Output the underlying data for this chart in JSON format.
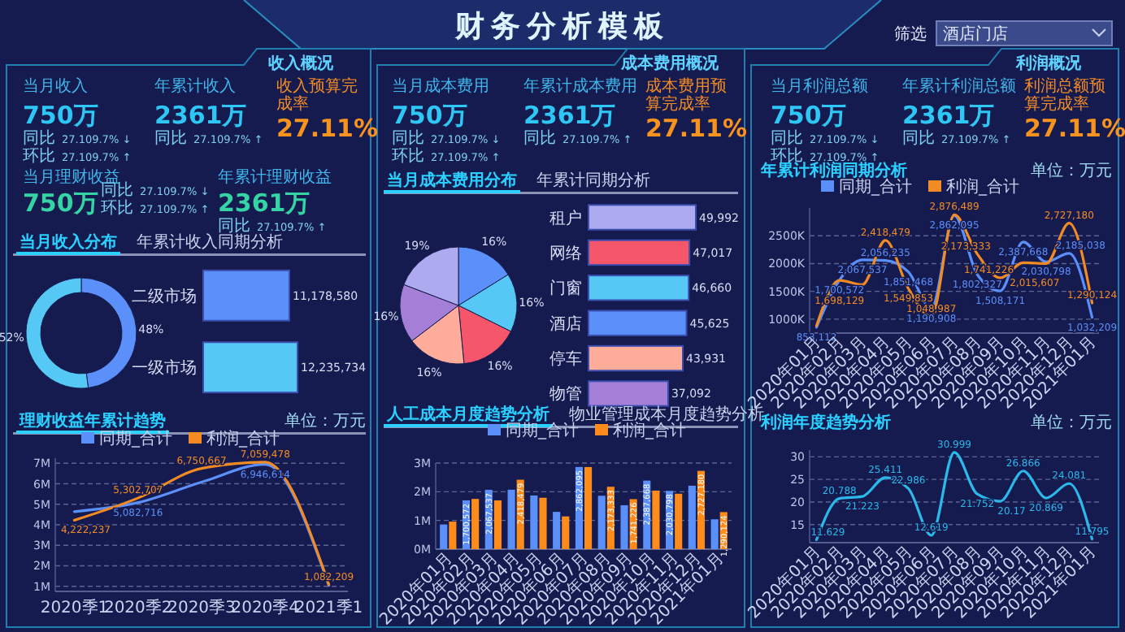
{
  "chart_data": [
    {
      "type": "other",
      "title": "财务分析模板",
      "annotations": [
        "筛选",
        "酒店门店"
      ]
    },
    {
      "type": "other",
      "title": "收入概况",
      "annotations": [
        "当月收入",
        "750万",
        "同比 27.109.7% ↓",
        "环比 27.109.7% ↑",
        "年累计收入",
        "2361万",
        "同比 27.109.7% ↑",
        "收入预算完成率",
        "27.11%",
        "当月理财收益",
        "750万",
        "同比 27.109.7% ↓",
        "环比 27.109.7% ↑",
        "年累计理财收益",
        "2361万",
        "同比 27.109.7% ↑"
      ]
    },
    {
      "type": "donut",
      "title": "当月收入分布",
      "categories": [
        null,
        null
      ],
      "values": [
        48,
        52
      ],
      "colors": [
        "#5b8ff9",
        "#56c8f5"
      ],
      "value_labels": [
        "48%",
        "52%"
      ]
    },
    {
      "type": "bar",
      "orientation": "horizontal",
      "title": "年累计收入同期分析",
      "categories": [
        "二级市场",
        "一级市场"
      ],
      "values": [
        11178580,
        12235734
      ],
      "colors": [
        "#5b8ff9",
        "#56c8f5"
      ],
      "value_labels": [
        "11,178,580",
        "12,235,734"
      ]
    },
    {
      "type": "line",
      "title": "理财收益年累计趋势",
      "annotations": [
        "单位：万元"
      ],
      "categories": [
        "2020季1",
        "2020季2",
        "2020季3",
        "2020季4",
        "2021季1"
      ],
      "ylim": [
        750000,
        7250000
      ],
      "yticks": [
        {
          "value": 1000000,
          "label": "1M"
        },
        {
          "value": 2000000,
          "label": "2M"
        },
        {
          "value": 3000000,
          "label": "3M"
        },
        {
          "value": 4000000,
          "label": "4M"
        },
        {
          "value": 5000000,
          "label": "5M"
        },
        {
          "value": 6000000,
          "label": "6M"
        },
        {
          "value": 7000000,
          "label": "7M"
        }
      ],
      "grid": "y",
      "legend": "top",
      "series": [
        {
          "name": "同期_合计",
          "color": "#5b8ff9",
          "values": [
            4640000,
            5082716,
            6080000,
            6946614,
            1040000
          ],
          "value_labels": [
            null,
            "5,082,716",
            null,
            "6,946,614",
            null
          ]
        },
        {
          "name": "利润_合计",
          "color": "#f28b24",
          "values": [
            4222237,
            5302707,
            6750667,
            7059478,
            1082209
          ],
          "value_labels": [
            "4,222,237",
            "5,302,707",
            "6,750,667",
            "7,059,478",
            "1,082,209"
          ]
        }
      ]
    },
    {
      "type": "other",
      "title": "成本费用概况",
      "annotations": [
        "当月成本费用",
        "750万",
        "同比 27.109.7% ↓",
        "环比 27.109.7% ↑",
        "年累计成本费用",
        "2361万",
        "同比 27.109.7% ↑",
        "成本费用预算完成率",
        "27.11%"
      ]
    },
    {
      "type": "pie",
      "title": "当月成本费用分布",
      "categories": [
        null,
        null,
        null,
        null,
        null,
        null
      ],
      "values": [
        16,
        16,
        16,
        16,
        16,
        19
      ],
      "colors": [
        "#5b8ff9",
        "#56c8f5",
        "#f5566a",
        "#ffac9a",
        "#a57fd7",
        "#aeaaf0"
      ],
      "value_labels": [
        "16%",
        "16%",
        "16%",
        "16%",
        "16%",
        "19%"
      ]
    },
    {
      "type": "bar",
      "orientation": "horizontal",
      "title": "年累计同期分析",
      "categories": [
        "租户",
        "网络",
        "门窗",
        "酒店",
        "停车",
        "物管"
      ],
      "values": [
        49992,
        47017,
        46660,
        45625,
        43931,
        37092
      ],
      "colors": [
        "#aeaaf0",
        "#f5566a",
        "#56c8f5",
        "#5b8ff9",
        "#ffac9a",
        "#a57fd7"
      ],
      "value_labels": [
        "49,992",
        "47,017",
        "46,660",
        "45,625",
        "43,931",
        "37,092"
      ]
    },
    {
      "type": "bar",
      "title": "人工成本月度趋势分析",
      "subtitle": "物业管理成本月度趋势分析",
      "categories": [
        "2020年01月",
        "2020年02月",
        "2020年03月",
        "2020年04月",
        "2020年05月",
        "2020年06月",
        "2020年07月",
        "2020年08月",
        "2020年09月",
        "2020年10月",
        "2020年11月",
        "2020年12月",
        "2021年01月"
      ],
      "ylim": [
        0,
        3000000
      ],
      "yticks": [
        {
          "value": 0,
          "label": "0M"
        },
        {
          "value": 1000000,
          "label": "1M"
        },
        {
          "value": 2000000,
          "label": "2M"
        },
        {
          "value": 3000000,
          "label": "3M"
        }
      ],
      "grid": "y",
      "legend": "top",
      "series": [
        {
          "name": "同期_合计",
          "color": "#5b8ff9",
          "values": [
            860000,
            1700572,
            2067537,
            2070000,
            1870000,
            1300000,
            2862095,
            1860000,
            1530000,
            2387668,
            2030798,
            2210000,
            1040000
          ],
          "value_labels": [
            null,
            "1,700,572",
            "2,067,537",
            null,
            null,
            null,
            "2,862,095",
            null,
            null,
            "2,387,668",
            "2,030,798",
            null,
            null
          ]
        },
        {
          "name": "利润_合计",
          "color": "#ff8c1a",
          "values": [
            960000,
            1750000,
            1700000,
            2418479,
            1790000,
            1140000,
            2860000,
            2173333,
            1741226,
            2040000,
            1930000,
            2727180,
            1290124
          ],
          "value_labels": [
            null,
            null,
            null,
            "2,418,479",
            null,
            null,
            null,
            "2,173,333",
            "1,741,226",
            null,
            null,
            "2,727,180",
            "1,290,124"
          ]
        }
      ]
    },
    {
      "type": "other",
      "title": "利润概况",
      "annotations": [
        "当月利润总额",
        "750万",
        "同比 27.109.7% ↓",
        "环比 27.109.7% ↑",
        "年累计利润总额",
        "2361万",
        "同比 27.109.7% ↑",
        "利润总额预算完成率",
        "27.11%"
      ]
    },
    {
      "type": "line",
      "title": "年累计利润同期分析",
      "annotations": [
        "单位：万元"
      ],
      "categories": [
        "2020年01月",
        "2020年02月",
        "2020年03月",
        "2020年04月",
        "2020年05月",
        "2020年06月",
        "2020年07月",
        "2020年08月",
        "2020年09月",
        "2020年10月",
        "2020年11月",
        "2020年12月",
        "2021年01月"
      ],
      "ylim": [
        750000,
        3000000
      ],
      "yticks": [
        {
          "value": 1000000,
          "label": "1000K"
        },
        {
          "value": 1500000,
          "label": "1500K"
        },
        {
          "value": 2000000,
          "label": "2000K"
        },
        {
          "value": 2500000,
          "label": "2500K"
        }
      ],
      "grid": "y",
      "legend": "top",
      "series": [
        {
          "name": "同期_合计",
          "color": "#5b8ff9",
          "values": [
            853112,
            1700572,
            2067537,
            2056235,
            1851468,
            1190908,
            2862095,
            1802327,
            1508171,
            2387668,
            2030798,
            2185038,
            1032209
          ],
          "value_labels": [
            "853,112",
            "1,700,572",
            "2,067,537",
            "2,056,235",
            "1,851,468",
            "1,190,908",
            "2,862,095",
            "1,802,327",
            "1,508,171",
            "2,387,668",
            "2,030,798",
            "2,185,038",
            "1,032,209"
          ]
        },
        {
          "name": "利润_合计",
          "color": "#f28b24",
          "values": [
            880000,
            1698129,
            1620000,
            2418479,
            1549853,
            1048987,
            2876489,
            2173333,
            1741226,
            2015607,
            2000000,
            2727180,
            1290124
          ],
          "value_labels": [
            null,
            "1,698,129",
            null,
            "2,418,479",
            "1,549,853",
            "1,048,987",
            "2,876,489",
            "2,173,333",
            "1,741,226",
            "2,015,607",
            null,
            "2,727,180",
            "1,290,124"
          ]
        }
      ]
    },
    {
      "type": "line",
      "title": "利润年度趋势分析",
      "annotations": [
        "单位：万元"
      ],
      "categories": [
        "2020年01月",
        "2020年02月",
        "2020年03月",
        "2020年04月",
        "2020年05月",
        "2020年06月",
        "2020年07月",
        "2020年08月",
        "2020年09月",
        "2020年10月",
        "2020年11月",
        "2020年12月",
        "2021年01月"
      ],
      "ylim": [
        11,
        31.5
      ],
      "yticks": [
        15,
        20,
        25,
        30
      ],
      "grid": "y",
      "data_labels": true,
      "color": "#2bb8ea",
      "values": [
        11.629,
        20.788,
        21.223,
        25.411,
        22.986,
        12.619,
        30.999,
        21.752,
        20.17,
        26.866,
        20.869,
        24.081,
        11.795
      ]
    }
  ]
}
